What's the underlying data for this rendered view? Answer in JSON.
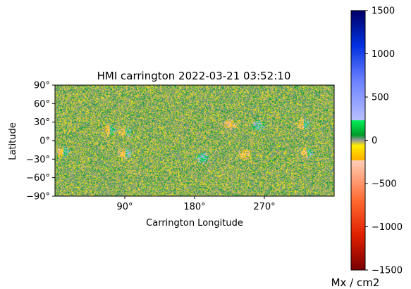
{
  "chart_data": {
    "type": "heatmap",
    "title": "HMI carrington 2022-03-21 03:52:10",
    "xlabel": "Carrington Longitude",
    "ylabel": "Latitude",
    "xlim": [
      0,
      360
    ],
    "ylim": [
      -90,
      90
    ],
    "x_ticks": [
      {
        "value": 90,
        "label": "90°"
      },
      {
        "value": 180,
        "label": "180°"
      },
      {
        "value": 270,
        "label": "270°"
      }
    ],
    "y_ticks": [
      {
        "value": 90,
        "label": "90°"
      },
      {
        "value": 60,
        "label": "60°"
      },
      {
        "value": 30,
        "label": "30°"
      },
      {
        "value": 0,
        "label": "0°"
      },
      {
        "value": -30,
        "label": "−30°"
      },
      {
        "value": -60,
        "label": "−60°"
      },
      {
        "value": -90,
        "label": "−90°"
      }
    ],
    "colorbar": {
      "label": "Mx / cm2",
      "range": [
        -1500,
        1500
      ],
      "ticks": [
        {
          "value": 1500,
          "label": "1500"
        },
        {
          "value": 1000,
          "label": "1000"
        },
        {
          "value": 500,
          "label": "500"
        },
        {
          "value": 0,
          "label": "0"
        },
        {
          "value": -500,
          "label": "−500"
        },
        {
          "value": -1000,
          "label": "−1000"
        },
        {
          "value": -1500,
          "label": "−1500"
        }
      ],
      "stops": [
        {
          "value": -1500,
          "color": "#7a0000"
        },
        {
          "value": -1100,
          "color": "#e02000"
        },
        {
          "value": -700,
          "color": "#ff6a30"
        },
        {
          "value": -230,
          "color": "#ffcfb8"
        },
        {
          "value": -229,
          "color": "#ffb000"
        },
        {
          "value": -60,
          "color": "#ffee00"
        },
        {
          "value": 0,
          "color": "#9a9a9a"
        },
        {
          "value": 60,
          "color": "#009a2a"
        },
        {
          "value": 229,
          "color": "#00ee55"
        },
        {
          "value": 230,
          "color": "#b8c0ff"
        },
        {
          "value": 700,
          "color": "#6a80ff"
        },
        {
          "value": 1100,
          "color": "#0030e0"
        },
        {
          "value": 1500,
          "color": "#000066"
        }
      ]
    },
    "active_regions": [
      {
        "lon": 70,
        "lat": 18,
        "polarity": "mixed"
      },
      {
        "lon": 90,
        "lat": 14,
        "polarity": "mixed"
      },
      {
        "lon": 225,
        "lat": 26,
        "polarity": "negative"
      },
      {
        "lon": 262,
        "lat": 25,
        "polarity": "positive"
      },
      {
        "lon": 320,
        "lat": 27,
        "polarity": "mixed"
      },
      {
        "lon": 10,
        "lat": -18,
        "polarity": "mixed"
      },
      {
        "lon": 90,
        "lat": -20,
        "polarity": "mixed"
      },
      {
        "lon": 190,
        "lat": -28,
        "polarity": "positive"
      },
      {
        "lon": 245,
        "lat": -22,
        "polarity": "negative"
      },
      {
        "lon": 325,
        "lat": -20,
        "polarity": "mixed"
      }
    ]
  }
}
